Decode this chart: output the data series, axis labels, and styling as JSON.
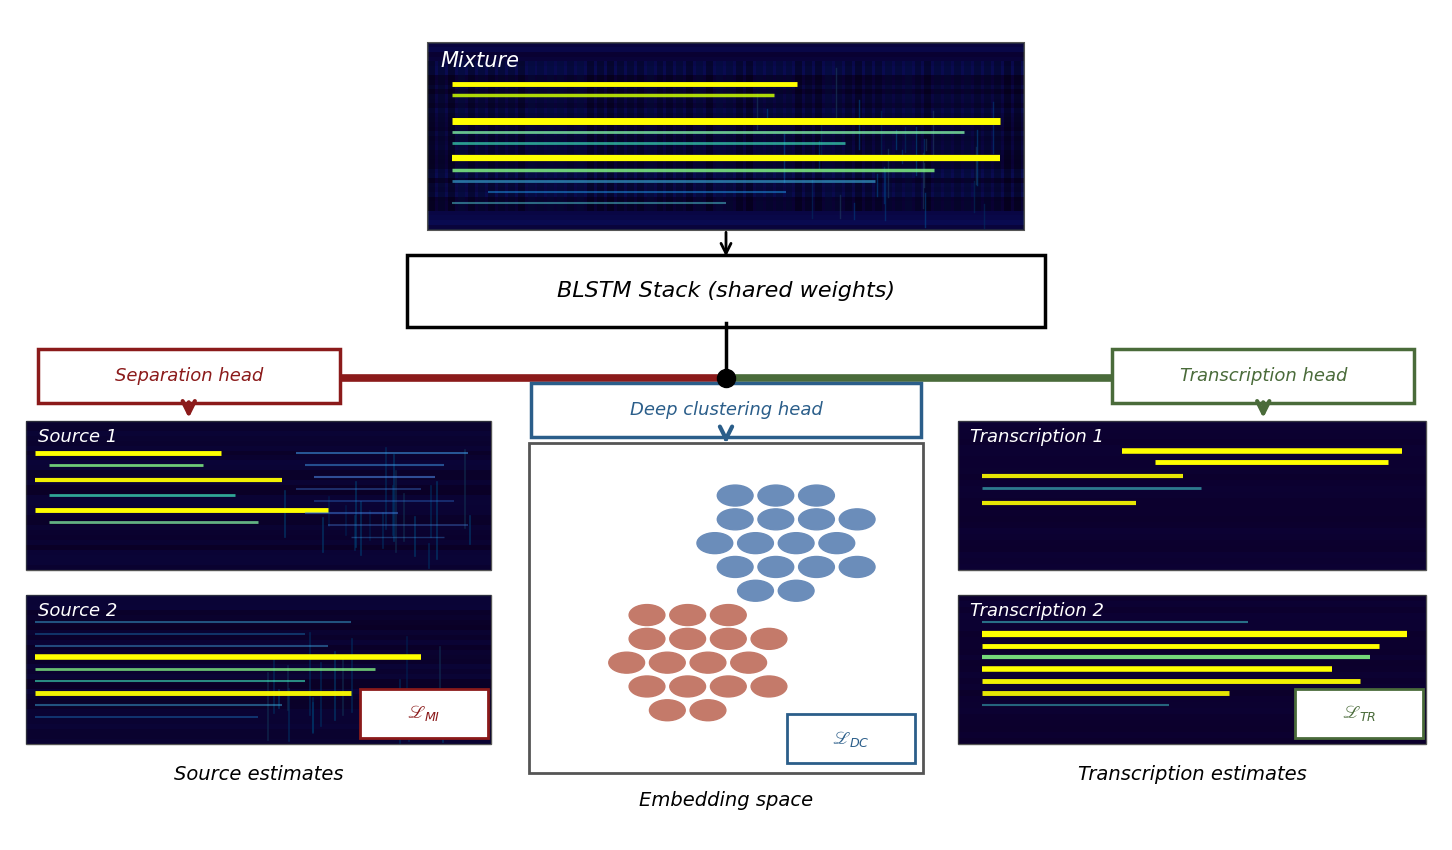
{
  "bg_color": "#ffffff",
  "spec_bg_dark": "#150040",
  "spec_bg_mix": "#180050",
  "blstm_text": "BLSTM Stack (shared weights)",
  "sep_text": "Separation head",
  "dc_text": "Deep clustering head",
  "tr_text": "Transcription head",
  "sep_color": "#8B1A1A",
  "dc_color": "#2B5E8A",
  "tr_color": "#4A6B3A",
  "dot_blue": "#6b8dba",
  "dot_pink": "#c47a6a",
  "lmi_ec": "#8B1A1A",
  "lmi_tc": "#8B1A1A",
  "ldc_ec": "#2B5E8A",
  "ldc_tc": "#2B5E8A",
  "ltr_ec": "#4A6B3A",
  "ltr_tc": "#4A6B3A",
  "labels": {
    "mixture": "Mixture",
    "source1": "Source 1",
    "source2": "Source 2",
    "trans1": "Transcription 1",
    "trans2": "Transcription 2",
    "source_est": "Source estimates",
    "embed_space": "Embedding space",
    "trans_est": "Transcription estimates"
  }
}
